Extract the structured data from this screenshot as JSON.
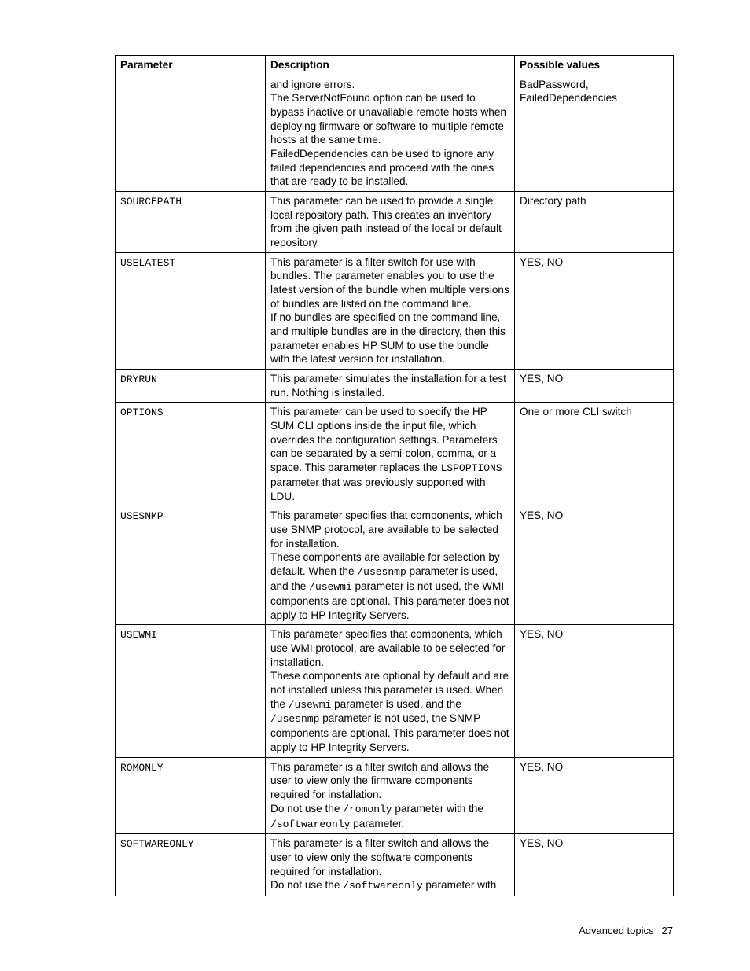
{
  "headers": {
    "parameter": "Parameter",
    "description": "Description",
    "possible_values": "Possible values"
  },
  "cells": {
    "r0_desc_p1": "and ignore errors.",
    "r0_desc_p2": "The ServerNotFound option can be used to bypass inactive or unavailable remote hosts when deploying firmware or software to multiple remote hosts at the same time.",
    "r0_desc_p3": "FailedDependencies can be used to ignore any failed dependencies and proceed with the ones that are ready to be installed.",
    "r0_pv": "BadPassword, FailedDependencies",
    "r1_param": "SOURCEPATH",
    "r1_desc": "This parameter can be used to provide a single local repository path. This creates an inventory from the given path instead of the local or default repository.",
    "r1_pv": "Directory path",
    "r2_param": "USELATEST",
    "r2_desc_p1": "This parameter is a filter switch for use with bundles. The parameter enables you to use the latest version of the bundle when multiple versions of bundles are listed on the command line.",
    "r2_desc_p2": "If no bundles are specified on the command line, and multiple bundles are in the directory, then this parameter enables HP SUM to use the bundle with the latest version for installation.",
    "r2_pv": "YES, NO",
    "r3_param": "DRYRUN",
    "r3_desc": "This parameter simulates the installation for a test run. Nothing is installed.",
    "r3_pv": "YES, NO",
    "r4_param": "OPTIONS",
    "r4_desc_a": "This parameter can be used to specify the HP SUM CLI options inside the input file, which overrides the configuration settings. Parameters can be separated by a semi-colon, comma, or a space. This parameter replaces the ",
    "r4_desc_code": "LSPOPTIONS",
    "r4_desc_b": " parameter that was previously supported with LDU.",
    "r4_pv": "One or more CLI switch",
    "r5_param": "USESNMP",
    "r5_desc_p1": "This parameter specifies that components, which use SNMP protocol, are available to be selected for installation.",
    "r5_desc_p2a": "These components are available for selection by default. When the ",
    "r5_desc_p2code1": "/usesnmp",
    "r5_desc_p2b": " parameter is used, and the ",
    "r5_desc_p2code2": "/usewmi",
    "r5_desc_p2c": " parameter is not used, the WMI components are optional. This parameter does not apply to HP Integrity Servers.",
    "r5_pv": "YES, NO",
    "r6_param": "USEWMI",
    "r6_desc_p1": "This parameter specifies that components, which use WMI protocol, are available to be selected for installation.",
    "r6_desc_p2a": "These components are optional by default and are not installed unless this parameter is used. When the ",
    "r6_desc_p2code1": "/usewmi",
    "r6_desc_p2b": " parameter is used, and the ",
    "r6_desc_p2code2": "/usesnmp",
    "r6_desc_p2c": " parameter is not used, the SNMP components are optional. This parameter does not apply to HP Integrity Servers.",
    "r6_pv": "YES, NO",
    "r7_param": "ROMONLY",
    "r7_desc_p1": "This parameter is a filter switch and allows the user to view only the firmware components required for installation.",
    "r7_desc_p2a": "Do not use the ",
    "r7_desc_p2code1": "/romonly",
    "r7_desc_p2b": " parameter with the ",
    "r7_desc_p2code2": "/softwareonly",
    "r7_desc_p2c": " parameter.",
    "r7_pv": "YES, NO",
    "r8_param": "SOFTWAREONLY",
    "r8_desc_p1": "This parameter is a filter switch and allows the user to view only the software components required for installation.",
    "r8_desc_p2a": "Do not use the ",
    "r8_desc_p2code": "/softwareonly",
    "r8_desc_p2b": " parameter with",
    "r8_pv": "YES, NO"
  },
  "footer": {
    "text": "Advanced topics",
    "page": "27"
  }
}
